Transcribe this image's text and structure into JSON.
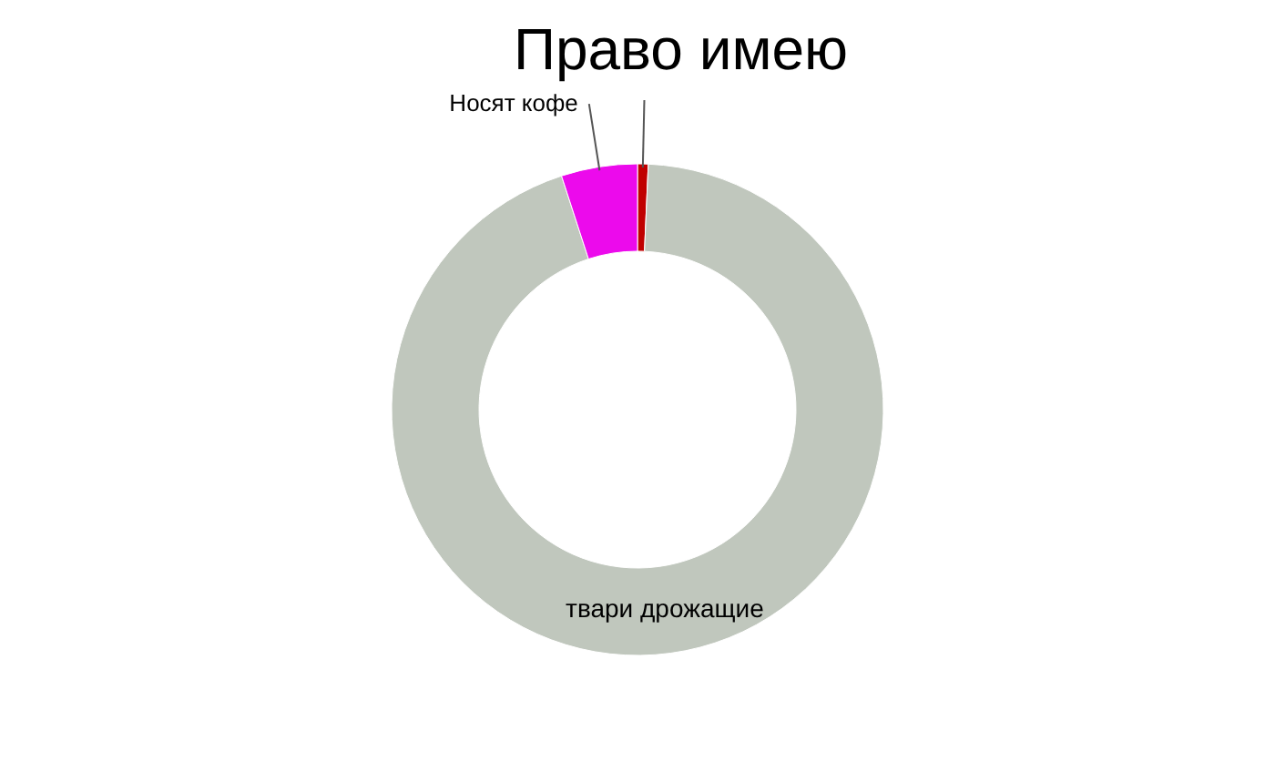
{
  "chart_data": {
    "type": "donut",
    "categories": [
      "Право имею",
      "твари дрожащие",
      "Носят кофе"
    ],
    "values": [
      0.7,
      94.3,
      5
    ],
    "colors": [
      "#c00000",
      "#c0c7bd",
      "#ec0aec"
    ]
  }
}
